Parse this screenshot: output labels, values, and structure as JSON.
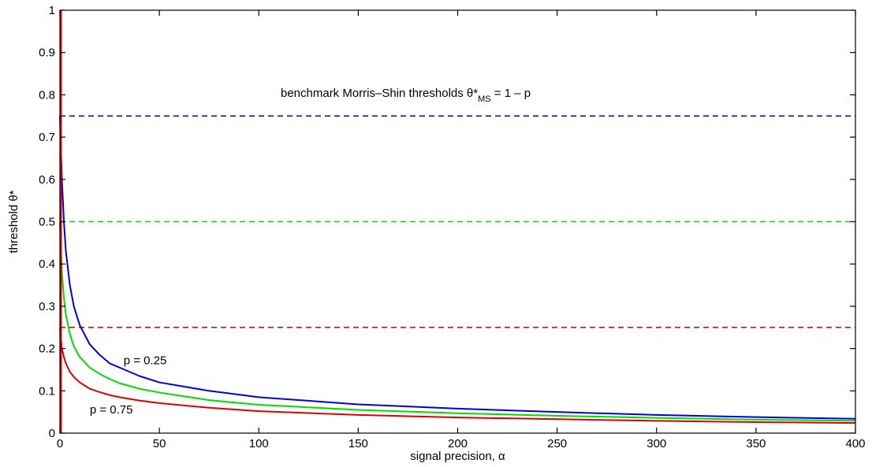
{
  "chart_data": {
    "type": "line",
    "xlabel": "signal precision, α",
    "ylabel": "threshold θ*",
    "xlim": [
      0,
      400
    ],
    "ylim": [
      0,
      1
    ],
    "x_ticks": [
      0,
      50,
      100,
      150,
      200,
      250,
      300,
      350,
      400
    ],
    "x_tick_labels": [
      "0",
      "50",
      "100",
      "150",
      "200",
      "250",
      "300",
      "350",
      "400"
    ],
    "y_ticks": [
      0,
      0.1,
      0.2,
      0.3,
      0.4,
      0.5,
      0.6,
      0.7,
      0.8,
      0.9,
      1
    ],
    "y_tick_labels": [
      "0",
      "0.1",
      "0.2",
      "0.3",
      "0.4",
      "0.5",
      "0.6",
      "0.7",
      "0.8",
      "0.9",
      "1"
    ],
    "grid": false,
    "series": [
      {
        "color": "#0000dd",
        "x": [
          0,
          1,
          2,
          3,
          5,
          7,
          10,
          15,
          20,
          25,
          30,
          40,
          50,
          75,
          100,
          150,
          200,
          250,
          300,
          350,
          400
        ],
        "values": [
          0.75,
          0.6,
          0.5,
          0.43,
          0.35,
          0.3,
          0.255,
          0.21,
          0.185,
          0.165,
          0.155,
          0.135,
          0.12,
          0.1,
          0.085,
          0.068,
          0.058,
          0.05,
          0.043,
          0.038,
          0.034
        ]
      },
      {
        "color": "#00dd00",
        "x": [
          0,
          1,
          2,
          3,
          5,
          7,
          10,
          15,
          20,
          25,
          30,
          40,
          50,
          75,
          100,
          150,
          200,
          250,
          300,
          350,
          400
        ],
        "values": [
          0.5,
          0.38,
          0.32,
          0.28,
          0.235,
          0.205,
          0.18,
          0.155,
          0.14,
          0.128,
          0.118,
          0.105,
          0.096,
          0.078,
          0.067,
          0.055,
          0.047,
          0.041,
          0.036,
          0.032,
          0.029
        ]
      },
      {
        "color": "#dd0000",
        "x": [
          0,
          1,
          2,
          3,
          5,
          7,
          10,
          15,
          20,
          25,
          30,
          40,
          50,
          75,
          100,
          150,
          200,
          250,
          300,
          350,
          400
        ],
        "values": [
          0.25,
          0.2,
          0.18,
          0.165,
          0.145,
          0.133,
          0.12,
          0.105,
          0.097,
          0.09,
          0.085,
          0.077,
          0.071,
          0.06,
          0.052,
          0.043,
          0.037,
          0.033,
          0.029,
          0.026,
          0.024
        ]
      }
    ],
    "reference_lines": [
      {
        "y": 0.75,
        "color": "#0000dd",
        "style": "dashed"
      },
      {
        "y": 0.5,
        "color": "#00dd00",
        "style": "dashed"
      },
      {
        "y": 0.25,
        "color": "#dd0000",
        "style": "dashed"
      }
    ],
    "near_vertical_spike": {
      "color": "#dd0000",
      "x": 0,
      "from": 0,
      "to": 1
    },
    "annotations": [
      {
        "id": "benchmark",
        "text": "benchmark Morris–Shin thresholds θ*",
        "sub": "MS",
        "tail": " = 1 – p",
        "x": 111,
        "y": 0.795
      },
      {
        "id": "p025",
        "text": "p = 0.25",
        "x": 32,
        "y": 0.163
      },
      {
        "id": "p075",
        "text": "p = 0.75",
        "x": 15,
        "y": 0.047
      }
    ]
  }
}
